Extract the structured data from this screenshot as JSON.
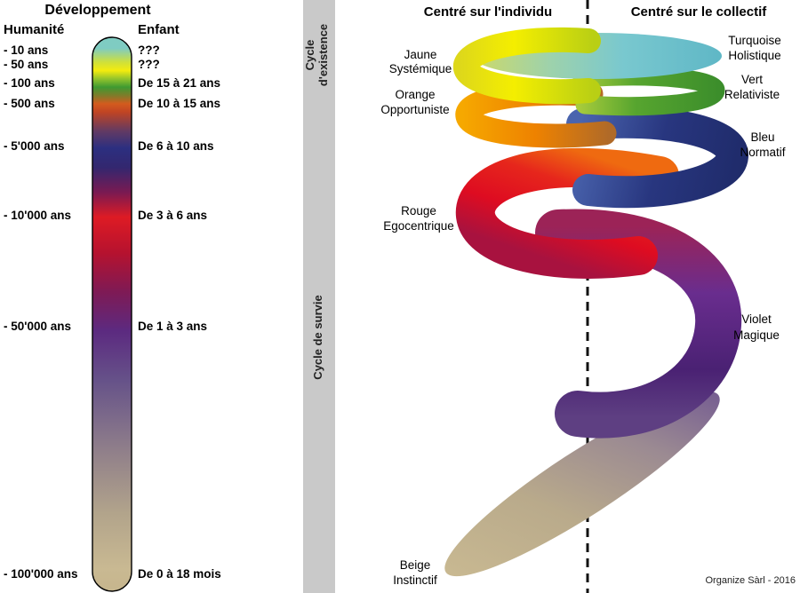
{
  "development": {
    "title": "Développement",
    "col_left": "Humanité",
    "col_right": "Enfant"
  },
  "timeline_rows": [
    {
      "human": "- 10 ans",
      "child": "???"
    },
    {
      "human": "- 50 ans",
      "child": "???"
    },
    {
      "human": "- 100 ans",
      "child": "De 15 à 21 ans"
    },
    {
      "human": "- 500 ans",
      "child": "De 10 à 15 ans"
    },
    {
      "human": "- 5'000 ans",
      "child": "De 6 à 10 ans"
    },
    {
      "human": "- 10'000 ans",
      "child": "De 3 à 6 ans"
    },
    {
      "human": "- 50'000 ans",
      "child": "De 1 à 3 ans"
    },
    {
      "human": "- 100'000 ans",
      "child": "De 0 à 18 mois"
    }
  ],
  "cycle_bar": {
    "existence_line1": "Cycle",
    "existence_line2": "d'existence",
    "survival": "Cycle de survie",
    "bar_color": "#c9c9c9"
  },
  "spiral": {
    "header_left": "Centré sur l'individu",
    "header_right": "Centré sur le collectif",
    "levels": [
      {
        "line1": "Turquoise",
        "line2": "Holistique",
        "color": "#79c8cf",
        "side": "right"
      },
      {
        "line1": "Jaune",
        "line2": "Systémique",
        "color": "#f4ee00",
        "side": "left"
      },
      {
        "line1": "Vert",
        "line2": "Relativiste",
        "color": "#57a52f",
        "side": "right"
      },
      {
        "line1": "Orange",
        "line2": "Opportuniste",
        "color": "#ee8200",
        "side": "left"
      },
      {
        "line1": "Bleu",
        "line2": "Normatif",
        "color": "#28367f",
        "side": "right"
      },
      {
        "line1": "Rouge",
        "line2": "Egocentrique",
        "color": "#de0c21",
        "side": "left"
      },
      {
        "line1": "Violet",
        "line2": "Magique",
        "color": "#5c2a80",
        "side": "right"
      },
      {
        "line1": "Beige",
        "line2": "Instinctif",
        "color": "#c9b992",
        "side": "left"
      }
    ]
  },
  "credit": "Organize Sàrl - 2016",
  "gradients": {
    "capsule": [
      [
        "0%",
        "#7fccc2"
      ],
      [
        "2%",
        "#7fccc2"
      ],
      [
        "4.5%",
        "#cfe03a"
      ],
      [
        "6%",
        "#f4ec0e"
      ],
      [
        "7.5%",
        "#93c42c"
      ],
      [
        "9%",
        "#3f9a31"
      ],
      [
        "10.5%",
        "#7e7c2a"
      ],
      [
        "12%",
        "#d35b1e"
      ],
      [
        "13.5%",
        "#c04423"
      ],
      [
        "17%",
        "#613a64"
      ],
      [
        "20%",
        "#2c2f80"
      ],
      [
        "23.5%",
        "#33276f"
      ],
      [
        "28%",
        "#7a1a52"
      ],
      [
        "32.5%",
        "#de1b24"
      ],
      [
        "39%",
        "#b5122f"
      ],
      [
        "46%",
        "#7e1a55"
      ],
      [
        "53%",
        "#5c2a80"
      ],
      [
        "62%",
        "#665289"
      ],
      [
        "74%",
        "#8e7d8a"
      ],
      [
        "86%",
        "#b2a48b"
      ],
      [
        "96%",
        "#c9b992"
      ],
      [
        "100%",
        "#c6b58d"
      ]
    ],
    "turquoise": [
      [
        "0%",
        "#ccd96a"
      ],
      [
        "30%",
        "#9ed2ab"
      ],
      [
        "60%",
        "#79c8cf"
      ],
      [
        "100%",
        "#5fb7c6"
      ]
    ],
    "yellow": [
      [
        "0%",
        "#ded81a"
      ],
      [
        "40%",
        "#f4ee00"
      ],
      [
        "100%",
        "#b9cf14"
      ]
    ],
    "green": [
      [
        "0%",
        "#a9cc3c"
      ],
      [
        "40%",
        "#57a52f"
      ],
      [
        "100%",
        "#3b8d2b"
      ]
    ],
    "orange": [
      [
        "0%",
        "#f6a800"
      ],
      [
        "50%",
        "#ee8200"
      ],
      [
        "100%",
        "#b06a28"
      ]
    ],
    "blue": [
      [
        "0%",
        "#4a64ae"
      ],
      [
        "50%",
        "#28367f"
      ],
      [
        "100%",
        "#1f2b6a"
      ]
    ],
    "red": [
      [
        "0%",
        "#ef6a10"
      ],
      [
        "30%",
        "#e6261c"
      ],
      [
        "65%",
        "#de0c21"
      ],
      [
        "100%",
        "#a8123f"
      ]
    ],
    "violet": [
      [
        "0%",
        "#9c2357"
      ],
      [
        "35%",
        "#692d8e"
      ],
      [
        "75%",
        "#4a2173"
      ],
      [
        "100%",
        "#5e3f82"
      ]
    ],
    "beige": [
      [
        "0%",
        "#6d5391"
      ],
      [
        "30%",
        "#9b8a92"
      ],
      [
        "60%",
        "#b9aa8b"
      ],
      [
        "100%",
        "#ccbc93"
      ]
    ]
  }
}
